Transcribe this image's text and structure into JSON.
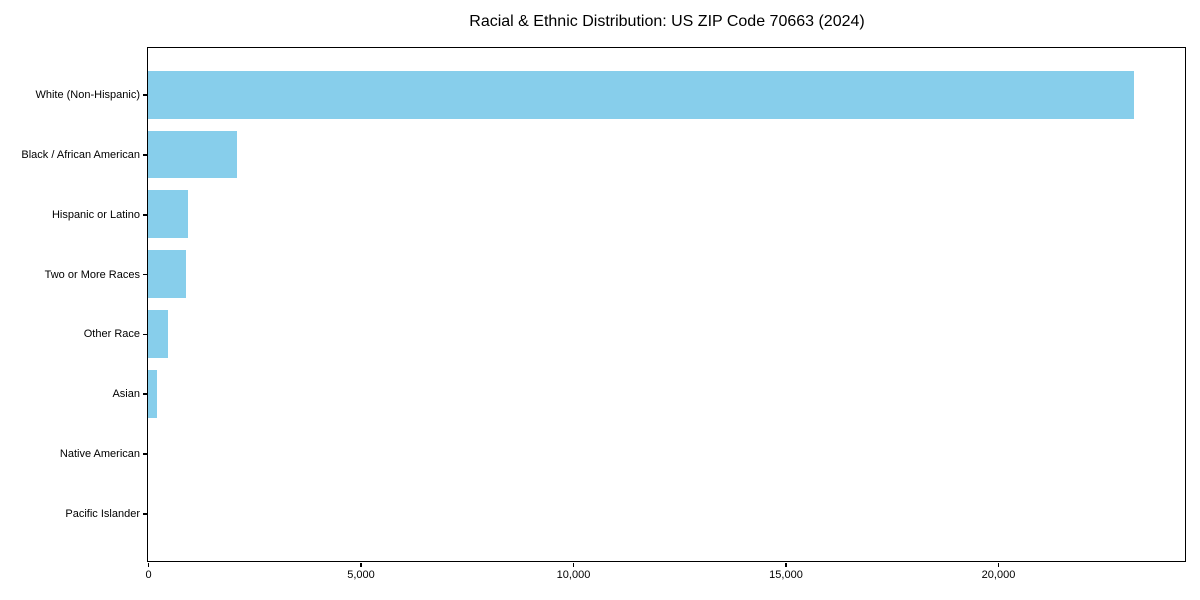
{
  "chart_data": {
    "type": "bar",
    "orientation": "horizontal",
    "title": "Racial & Ethnic Distribution: US ZIP Code 70663 (2024)",
    "categories": [
      "White (Non-Hispanic)",
      "Black / African American",
      "Hispanic or Latino",
      "Two or More Races",
      "Other Race",
      "Asian",
      "Native American",
      "Pacific Islander"
    ],
    "values": [
      23200,
      2100,
      950,
      890,
      480,
      200,
      0,
      0
    ],
    "xlabel": "",
    "ylabel": "",
    "xlim": [
      0,
      24400
    ],
    "x_ticks": [
      0,
      5000,
      10000,
      15000,
      20000
    ],
    "x_tick_labels": [
      "0",
      "5,000",
      "10,000",
      "15,000",
      "20,000"
    ],
    "bar_color": "#87CEEB",
    "axis_color": "#000000",
    "background_color": "#ffffff",
    "grid": false,
    "legend": false
  }
}
